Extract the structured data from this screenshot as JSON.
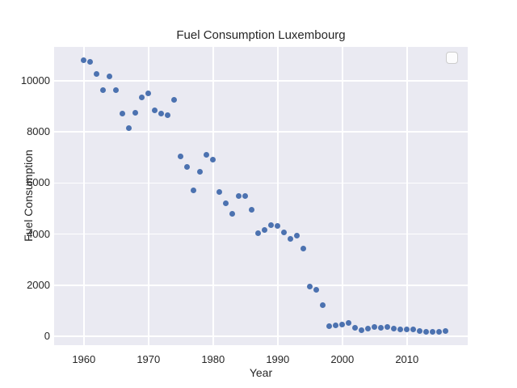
{
  "figure": {
    "title": "Fuel Consumption Luxembourg",
    "xlabel": "Year",
    "ylabel": "Fuel Consumption"
  },
  "chart_data": {
    "type": "scatter",
    "title": "Fuel Consumption Luxembourg",
    "xlabel": "Year",
    "ylabel": "Fuel Consumption",
    "xlim": [
      1955.4,
      2019.4
    ],
    "ylim": [
      -350,
      11330
    ],
    "x_ticks": [
      1960,
      1970,
      1980,
      1990,
      2000,
      2010
    ],
    "y_ticks": [
      0,
      2000,
      4000,
      6000,
      8000,
      10000
    ],
    "grid": true,
    "legend": {
      "present": true,
      "entries": [],
      "position": "upper right"
    },
    "marker_color": "#4C72B0",
    "axes_bg_color": "#EAEAF2",
    "grid_color": "#FFFFFF",
    "text_color": "#262626",
    "x": [
      1960,
      1961,
      1962,
      1963,
      1964,
      1965,
      1966,
      1967,
      1968,
      1969,
      1970,
      1971,
      1972,
      1973,
      1974,
      1975,
      1976,
      1977,
      1978,
      1979,
      1980,
      1981,
      1982,
      1983,
      1984,
      1985,
      1986,
      1987,
      1988,
      1989,
      1990,
      1991,
      1992,
      1993,
      1994,
      1995,
      1996,
      1997,
      1998,
      1999,
      2000,
      2001,
      2002,
      2003,
      2004,
      2005,
      2006,
      2007,
      2008,
      2009,
      2010,
      2011,
      2012,
      2013,
      2014,
      2015,
      2016
    ],
    "y": [
      10815,
      10750,
      10255,
      9645,
      10170,
      9630,
      8725,
      8155,
      8735,
      9340,
      9520,
      8830,
      8705,
      8660,
      9265,
      7050,
      6625,
      5720,
      6455,
      7110,
      6910,
      5645,
      5220,
      4780,
      5475,
      5475,
      4950,
      4030,
      4145,
      4360,
      4315,
      4075,
      3820,
      3925,
      3430,
      1960,
      1805,
      1210,
      380,
      420,
      455,
      515,
      325,
      230,
      295,
      360,
      325,
      370,
      295,
      275,
      275,
      255,
      190,
      170,
      170,
      170,
      190
    ]
  }
}
